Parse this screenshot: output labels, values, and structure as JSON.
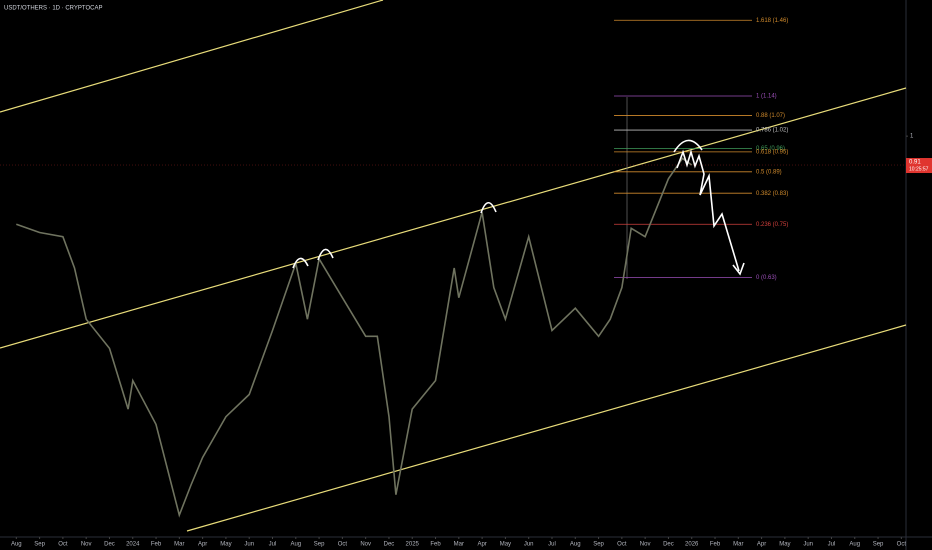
{
  "header": {
    "title": "USDT/OTHERS · 1D · CRYPTOCAP"
  },
  "chart_data": {
    "type": "line",
    "color": "#6f735f",
    "log_scale": true,
    "xlim": [
      -0.7,
      38.2
    ],
    "ylim": [
      0.27,
      1.56
    ],
    "x": [
      0,
      1,
      2,
      2.5,
      3,
      4,
      4.8,
      5,
      6,
      7,
      7.5,
      8,
      9,
      10,
      11,
      12,
      12.5,
      13,
      14,
      15,
      15.5,
      16,
      16.3,
      17,
      18,
      18.8,
      19,
      20,
      20.5,
      21,
      22,
      23,
      24,
      25,
      25.5,
      26,
      26.4,
      27,
      28,
      28.6,
      29
    ],
    "values": [
      0.75,
      0.73,
      0.72,
      0.65,
      0.55,
      0.5,
      0.41,
      0.45,
      0.39,
      0.29,
      0.32,
      0.35,
      0.4,
      0.43,
      0.53,
      0.66,
      0.55,
      0.67,
      0.59,
      0.52,
      0.52,
      0.4,
      0.31,
      0.41,
      0.45,
      0.65,
      0.59,
      0.78,
      0.61,
      0.55,
      0.72,
      0.53,
      0.57,
      0.52,
      0.55,
      0.61,
      0.74,
      0.72,
      0.87,
      0.93,
      0.91
    ],
    "yticks": [
      1
    ],
    "xticks": [
      {
        "value": 0,
        "label": "Aug"
      },
      {
        "value": 1,
        "label": "Sep"
      },
      {
        "value": 2,
        "label": "Oct"
      },
      {
        "value": 3,
        "label": "Nov"
      },
      {
        "value": 4,
        "label": "Dec"
      },
      {
        "value": 5,
        "label": "2024"
      },
      {
        "value": 6,
        "label": "Feb"
      },
      {
        "value": 7,
        "label": "Mar"
      },
      {
        "value": 8,
        "label": "Apr"
      },
      {
        "value": 9,
        "label": "May"
      },
      {
        "value": 10,
        "label": "Jun"
      },
      {
        "value": 11,
        "label": "Jul"
      },
      {
        "value": 12,
        "label": "Aug"
      },
      {
        "value": 13,
        "label": "Sep"
      },
      {
        "value": 14,
        "label": "Oct"
      },
      {
        "value": 15,
        "label": "Nov"
      },
      {
        "value": 16,
        "label": "Dec"
      },
      {
        "value": 17,
        "label": "2025"
      },
      {
        "value": 18,
        "label": "Feb"
      },
      {
        "value": 19,
        "label": "Mar"
      },
      {
        "value": 20,
        "label": "Apr"
      },
      {
        "value": 21,
        "label": "May"
      },
      {
        "value": 22,
        "label": "Jun"
      },
      {
        "value": 23,
        "label": "Jul"
      },
      {
        "value": 24,
        "label": "Aug"
      },
      {
        "value": 25,
        "label": "Sep"
      },
      {
        "value": 26,
        "label": "Oct"
      },
      {
        "value": 27,
        "label": "Nov"
      },
      {
        "value": 28,
        "label": "Dec"
      },
      {
        "value": 29,
        "label": "2026"
      },
      {
        "value": 30,
        "label": "Feb"
      },
      {
        "value": 31,
        "label": "Mar"
      },
      {
        "value": 32,
        "label": "Apr"
      },
      {
        "value": 33,
        "label": "May"
      },
      {
        "value": 34,
        "label": "Jun"
      },
      {
        "value": 35,
        "label": "Jul"
      },
      {
        "value": 36,
        "label": "Aug"
      },
      {
        "value": 37,
        "label": "Sep"
      },
      {
        "value": 38,
        "label": "Oct"
      }
    ],
    "fib_levels": [
      {
        "value": 1.46,
        "label": "1.618 (1.46)",
        "color": "#d08a2c"
      },
      {
        "value": 1.14,
        "label": "1 (1.14)",
        "color": "#9b4fb8"
      },
      {
        "value": 1.07,
        "label": "0.88 (1.07)",
        "color": "#d08a2c"
      },
      {
        "value": 1.02,
        "label": "0.786 (1.02)",
        "color": "#bbbbbb"
      },
      {
        "value": 0.96,
        "label": "0.65 (0.96)",
        "color": "#3f9a5a"
      },
      {
        "value": 0.95,
        "label": "0.618 (0.95)",
        "color": "#d08a2c"
      },
      {
        "value": 0.89,
        "label": "0.5 (0.89)",
        "color": "#d08a2c"
      },
      {
        "value": 0.83,
        "label": "0.382 (0.83)",
        "color": "#d08a2c"
      },
      {
        "value": 0.75,
        "label": "0.236 (0.75)",
        "color": "#d0403c"
      },
      {
        "value": 0.63,
        "label": "0 (0.63)",
        "color": "#9b4fb8"
      }
    ],
    "last_price": {
      "value": 0.91,
      "countdown": "10:25:57",
      "color": "#e0352f"
    }
  }
}
